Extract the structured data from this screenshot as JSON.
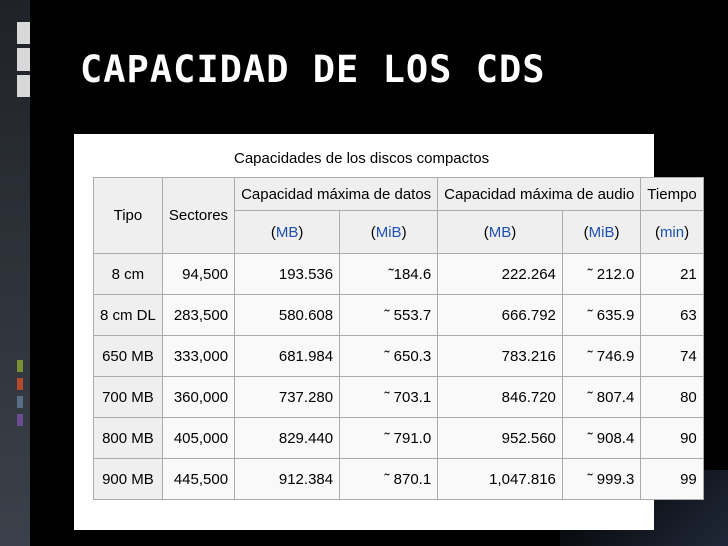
{
  "slide": {
    "title": "CAPACIDAD DE LOS CDS",
    "accent_colors": [
      "#7a8e33",
      "#b7472a",
      "#5a6c86",
      "#6a4c92"
    ]
  },
  "table": {
    "caption": "Capacidades de los discos compactos",
    "headers": {
      "tipo": "Tipo",
      "sectores": "Sectores",
      "datos": "Capacidad máxima de datos",
      "audio": "Capacidad máxima de audio",
      "tiempo": "Tiempo",
      "units": [
        {
          "open": "(",
          "link": "MB",
          "close": ")"
        },
        {
          "open": "(",
          "link": "MiB",
          "close": ")"
        },
        {
          "open": "(",
          "link": "MB",
          "close": ")"
        },
        {
          "open": "(",
          "link": "MiB",
          "close": ")"
        },
        {
          "open": "(",
          "link": "min",
          "close": ")"
        }
      ]
    },
    "rows": [
      {
        "tipo": "8 cm",
        "sectores": "94,500",
        "datos_mb": "193.536",
        "datos_mib": "˜184.6",
        "audio_mb": "222.264",
        "audio_mib": "˜ 212.0",
        "tiempo": "21"
      },
      {
        "tipo": "8 cm DL",
        "sectores": "283,500",
        "datos_mb": "580.608",
        "datos_mib": "˜ 553.7",
        "audio_mb": "666.792",
        "audio_mib": "˜ 635.9",
        "tiempo": "63"
      },
      {
        "tipo": "650 MB",
        "sectores": "333,000",
        "datos_mb": "681.984",
        "datos_mib": "˜ 650.3",
        "audio_mb": "783.216",
        "audio_mib": "˜ 746.9",
        "tiempo": "74"
      },
      {
        "tipo": "700 MB",
        "sectores": "360,000",
        "datos_mb": "737.280",
        "datos_mib": "˜ 703.1",
        "audio_mb": "846.720",
        "audio_mib": "˜ 807.4",
        "tiempo": "80"
      },
      {
        "tipo": "800 MB",
        "sectores": "405,000",
        "datos_mb": "829.440",
        "datos_mib": "˜ 791.0",
        "audio_mb": "952.560",
        "audio_mib": "˜ 908.4",
        "tiempo": "90"
      },
      {
        "tipo": "900 MB",
        "sectores": "445,500",
        "datos_mb": "912.384",
        "datos_mib": "˜ 870.1",
        "audio_mb": "1,047.816",
        "audio_mib": "˜ 999.3",
        "tiempo": "99"
      }
    ]
  }
}
